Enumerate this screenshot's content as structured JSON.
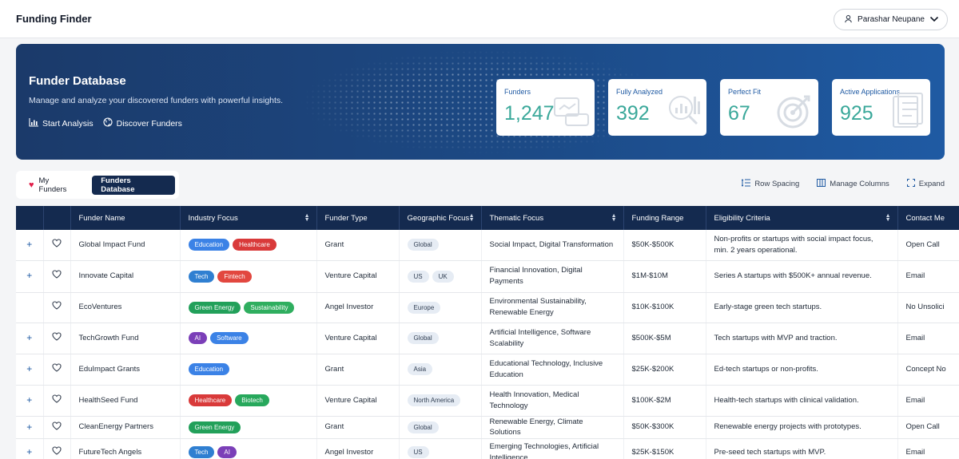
{
  "app": {
    "title": "Funding Finder"
  },
  "user": {
    "name": "Parashar Neupane"
  },
  "hero": {
    "title": "Funder Database",
    "subtitle": "Manage and analyze your discovered funders with powerful insights.",
    "links": [
      {
        "label": "Start Analysis",
        "icon": "bar-chart-icon"
      },
      {
        "label": "Discover Funders",
        "icon": "globe-icon"
      }
    ],
    "stats": [
      {
        "label": "Funders",
        "value": "1,247",
        "icon": "handshake-icon"
      },
      {
        "label": "Fully Analyzed",
        "value": "392",
        "icon": "magnifier-chart-icon"
      },
      {
        "label": "Perfect Fit",
        "value": "67",
        "icon": "target-icon"
      },
      {
        "label": "Active Applications",
        "value": "925",
        "icon": "checklist-icon"
      }
    ]
  },
  "tabs": [
    {
      "label": "My Funders",
      "active": false
    },
    {
      "label": "Funders Database",
      "active": true
    }
  ],
  "toolbar": {
    "row_spacing": "Row Spacing",
    "manage_columns": "Manage Columns",
    "expand": "Expand"
  },
  "table": {
    "columns": [
      "Funder Name",
      "Industry Focus",
      "Funder Type",
      "Geographic Focus",
      "Thematic Focus",
      "Funding Range",
      "Eligibility Criteria",
      "Contact Me"
    ],
    "rows": [
      {
        "name": "Global Impact Fund",
        "industry": [
          "Education",
          "Healthcare"
        ],
        "type": "Grant",
        "geo": [
          "Global"
        ],
        "thematic": "Social Impact, Digital Transformation",
        "range": "$50K-$500K",
        "eligibility": "Non-profits or startups with social impact focus, min. 2 years operational.",
        "contact": "Open Call",
        "expand": true
      },
      {
        "name": "Innovate Capital",
        "industry": [
          "Tech",
          "Fintech"
        ],
        "type": "Venture Capital",
        "geo": [
          "US",
          "UK"
        ],
        "thematic": "Financial Innovation, Digital Payments",
        "range": "$1M-$10M",
        "eligibility": "Series A startups with $500K+ annual revenue.",
        "contact": "Email",
        "expand": true
      },
      {
        "name": "EcoVentures",
        "industry": [
          "Green Energy",
          "Sustainability"
        ],
        "type": "Angel Investor",
        "geo": [
          "Europe"
        ],
        "thematic": "Environmental Sustainability, Renewable Energy",
        "range": "$10K-$100K",
        "eligibility": "Early-stage green tech startups.",
        "contact": "No Unsolici",
        "expand": false
      },
      {
        "name": "TechGrowth Fund",
        "industry": [
          "AI",
          "Software"
        ],
        "type": "Venture Capital",
        "geo": [
          "Global"
        ],
        "thematic": "Artificial Intelligence, Software Scalability",
        "range": "$500K-$5M",
        "eligibility": "Tech startups with MVP and traction.",
        "contact": "Email",
        "expand": true
      },
      {
        "name": "EduImpact Grants",
        "industry": [
          "Education"
        ],
        "type": "Grant",
        "geo": [
          "Asia"
        ],
        "thematic": "Educational Technology, Inclusive Education",
        "range": "$25K-$200K",
        "eligibility": "Ed-tech startups or non-profits.",
        "contact": "Concept No",
        "expand": true
      },
      {
        "name": "HealthSeed Fund",
        "industry": [
          "Healthcare",
          "Biotech"
        ],
        "type": "Venture Capital",
        "geo": [
          "North America"
        ],
        "thematic": "Health Innovation, Medical Technology",
        "range": "$100K-$2M",
        "eligibility": "Health-tech startups with clinical validation.",
        "contact": "Email",
        "expand": true
      },
      {
        "name": "CleanEnergy Partners",
        "industry": [
          "Green Energy"
        ],
        "type": "Grant",
        "geo": [
          "Global"
        ],
        "thematic": "Renewable Energy, Climate Solutions",
        "range": "$50K-$300K",
        "eligibility": "Renewable energy projects with prototypes.",
        "contact": "Open Call",
        "expand": true
      },
      {
        "name": "FutureTech Angels",
        "industry": [
          "Tech",
          "AI"
        ],
        "type": "Angel Investor",
        "geo": [
          "US"
        ],
        "thematic": "Emerging Technologies, Artificial Intelligence",
        "range": "$25K-$150K",
        "eligibility": "Pre-seed tech startups with MVP.",
        "contact": "Email",
        "expand": true
      }
    ]
  },
  "chip_colors": {
    "Education": "#3b82e6",
    "Healthcare": "#d93a3a",
    "Tech": "#2f7fd1",
    "Fintech": "#e2473f",
    "Green Energy": "#22a05a",
    "Sustainability": "#2fae5f",
    "AI": "#7b3fb8",
    "Software": "#3b82e6",
    "Biotech": "#27a85c"
  }
}
